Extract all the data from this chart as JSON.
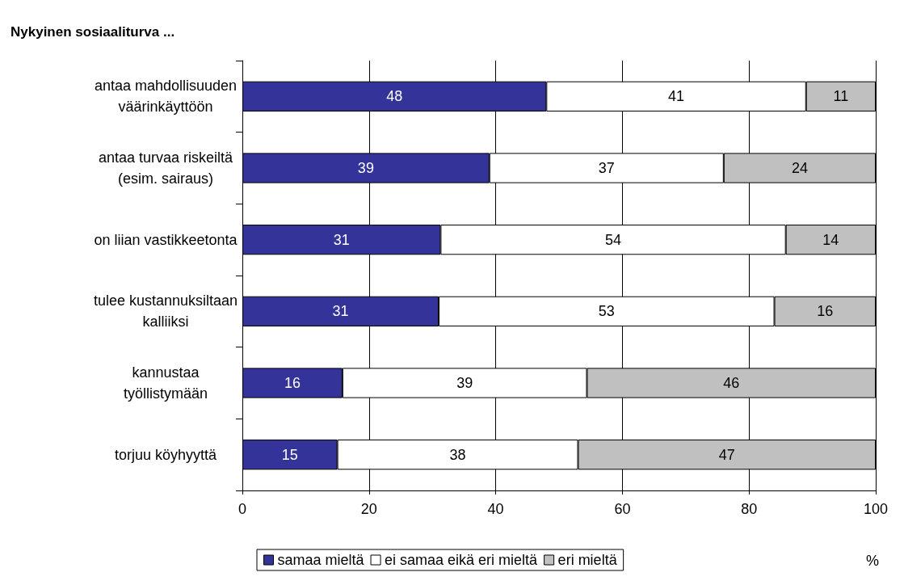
{
  "chart_data": {
    "type": "bar",
    "orientation": "horizontal",
    "stacked": true,
    "title": "Nykyinen sosiaaliturva ...",
    "xlabel": "%",
    "categories": [
      "antaa mahdollisuuden\nväärinkäyttöön",
      "antaa turvaa riskeiltä\n(esim. sairaus)",
      "on liian vastikkeetonta",
      "tulee kustannuksiltaan\nkalliiksi",
      "kannustaa\ntyöllistymään",
      "torjuu köyhyyttä"
    ],
    "series": [
      {
        "name": "samaa mieltä",
        "color": "#333399",
        "values": [
          48,
          39,
          31.3,
          31,
          15.8,
          15
        ],
        "value_labels": [
          "48",
          "39",
          "31",
          "31",
          "16",
          "15"
        ]
      },
      {
        "name": "ei samaa eikä eri mieltä",
        "color": "#ffffff",
        "values": [
          41,
          37,
          54.5,
          53,
          38.6,
          38
        ],
        "value_labels": [
          "41",
          "37",
          "54",
          "53",
          "39",
          "38"
        ]
      },
      {
        "name": "eri mieltä",
        "color": "#c0c0c0",
        "values": [
          11,
          24,
          14.2,
          16,
          45.6,
          47
        ],
        "value_labels": [
          "11",
          "24",
          "14",
          "16",
          "46",
          "47"
        ]
      }
    ],
    "xlim": [
      0,
      100
    ],
    "xticks": [
      0,
      20,
      40,
      60,
      80,
      100
    ],
    "grid": "x",
    "legend": "bottom"
  }
}
